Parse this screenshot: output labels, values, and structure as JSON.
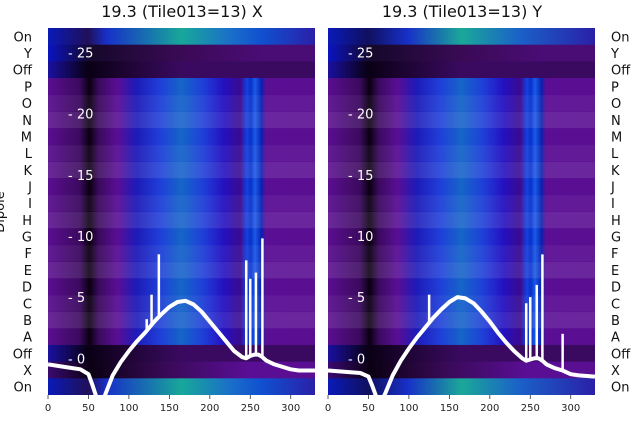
{
  "chart_data": [
    {
      "type": "heatmap",
      "title": "19.3 (Tile013=13) X",
      "ylabel": "Dipole",
      "x_ticks": [
        0,
        50,
        100,
        150,
        200,
        250,
        300
      ],
      "xlim": [
        0,
        330
      ],
      "left_labels": [
        "On",
        "Y",
        "Off",
        "P",
        "O",
        "N",
        "M",
        "L",
        "K",
        "J",
        "I",
        "H",
        "G",
        "F",
        "E",
        "D",
        "C",
        "B",
        "A",
        "Off",
        "X",
        "On"
      ],
      "overlay_ticks": [
        0,
        5,
        10,
        15,
        20,
        25
      ],
      "overlay_ylim": [
        -3,
        27
      ],
      "overlay_line": {
        "x": [
          0,
          20,
          40,
          50,
          55,
          60,
          65,
          70,
          80,
          90,
          100,
          110,
          120,
          130,
          140,
          150,
          160,
          170,
          180,
          190,
          200,
          210,
          220,
          230,
          240,
          245,
          250,
          255,
          260,
          265,
          270,
          280,
          290,
          300,
          310,
          330
        ],
        "y": [
          -0.5,
          -0.7,
          -0.9,
          -1.3,
          -2.2,
          -3.2,
          -3.6,
          -3.1,
          -1.4,
          -0.3,
          0.6,
          1.4,
          2.1,
          2.9,
          3.6,
          4.2,
          4.6,
          4.7,
          4.4,
          3.8,
          3.0,
          2.2,
          1.4,
          0.6,
          0.1,
          0.0,
          0.2,
          0.3,
          0.3,
          0.1,
          -0.2,
          -0.5,
          -0.7,
          -0.9,
          -1.0,
          -1.0
        ]
      },
      "overlay_spikes": [
        {
          "x": 122,
          "y": 3.2
        },
        {
          "x": 128,
          "y": 5.2
        },
        {
          "x": 137,
          "y": 8.5
        },
        {
          "x": 245,
          "y": 8.0
        },
        {
          "x": 250,
          "y": 6.5
        },
        {
          "x": 257,
          "y": 7.0
        },
        {
          "x": 265,
          "y": 9.8
        }
      ]
    },
    {
      "type": "heatmap",
      "title": "19.3 (Tile013=13) Y",
      "x_ticks": [
        0,
        50,
        100,
        150,
        200,
        250,
        300
      ],
      "xlim": [
        0,
        330
      ],
      "right_labels": [
        "On",
        "Y",
        "Off",
        "P",
        "O",
        "N",
        "M",
        "L",
        "K",
        "J",
        "I",
        "H",
        "G",
        "F",
        "E",
        "D",
        "C",
        "B",
        "A",
        "Off",
        "X",
        "On"
      ],
      "overlay_ticks": [
        0,
        5,
        10,
        15,
        20,
        25
      ],
      "overlay_ylim": [
        -3,
        27
      ],
      "overlay_line": {
        "x": [
          0,
          20,
          40,
          50,
          55,
          60,
          65,
          70,
          80,
          90,
          100,
          110,
          120,
          130,
          140,
          150,
          160,
          170,
          180,
          190,
          200,
          210,
          220,
          230,
          240,
          245,
          250,
          255,
          260,
          265,
          270,
          280,
          290,
          300,
          310,
          330
        ],
        "y": [
          -1.0,
          -1.1,
          -1.2,
          -1.5,
          -2.3,
          -3.2,
          -3.5,
          -3.0,
          -1.4,
          -0.2,
          0.8,
          1.7,
          2.5,
          3.3,
          4.0,
          4.6,
          5.0,
          4.9,
          4.5,
          3.8,
          3.0,
          2.1,
          1.3,
          0.6,
          0.0,
          -0.2,
          -0.1,
          0.0,
          0.0,
          -0.2,
          -0.5,
          -0.8,
          -1.0,
          -1.3,
          -1.4,
          -1.5
        ]
      },
      "overlay_spikes": [
        {
          "x": 125,
          "y": 5.2
        },
        {
          "x": 245,
          "y": 4.5
        },
        {
          "x": 250,
          "y": 5.0
        },
        {
          "x": 258,
          "y": 6.0
        },
        {
          "x": 265,
          "y": 8.5
        },
        {
          "x": 290,
          "y": 2.0
        }
      ]
    }
  ]
}
